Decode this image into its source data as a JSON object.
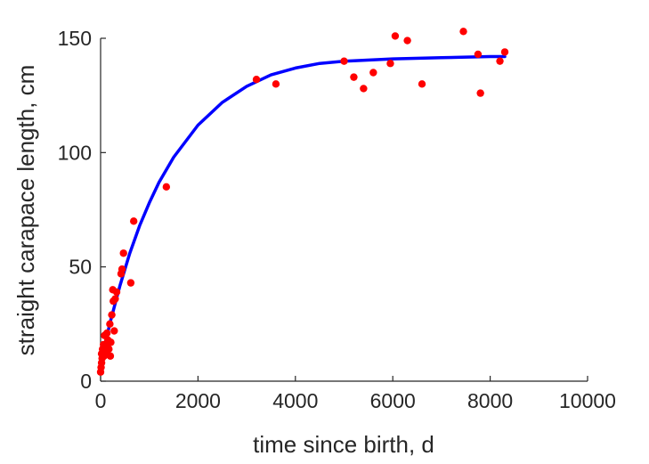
{
  "chart_data": {
    "type": "scatter",
    "title": "",
    "xlabel": "time since birth, d",
    "ylabel": "straight carapace length, cm",
    "xlim": [
      0,
      10000
    ],
    "ylim": [
      0,
      150
    ],
    "xticks": [
      0,
      2000,
      4000,
      6000,
      8000,
      10000
    ],
    "yticks": [
      0,
      50,
      100,
      150
    ],
    "grid": false,
    "legend": "none",
    "colors": {
      "points": "#ff0000",
      "fit": "#0000ff",
      "axis": "#262626"
    },
    "series": [
      {
        "kind": "points",
        "values": [
          [
            0,
            4
          ],
          [
            10,
            6
          ],
          [
            20,
            8
          ],
          [
            20,
            12
          ],
          [
            30,
            10
          ],
          [
            40,
            14
          ],
          [
            50,
            13
          ],
          [
            60,
            16
          ],
          [
            70,
            11
          ],
          [
            80,
            20
          ],
          [
            100,
            12
          ],
          [
            110,
            15
          ],
          [
            130,
            21
          ],
          [
            150,
            18
          ],
          [
            170,
            14
          ],
          [
            190,
            25
          ],
          [
            200,
            11
          ],
          [
            210,
            17
          ],
          [
            230,
            29
          ],
          [
            250,
            40
          ],
          [
            260,
            35
          ],
          [
            280,
            22
          ],
          [
            300,
            36
          ],
          [
            330,
            39
          ],
          [
            420,
            47
          ],
          [
            440,
            49
          ],
          [
            470,
            56
          ],
          [
            620,
            43
          ],
          [
            680,
            70
          ],
          [
            1350,
            85
          ],
          [
            3200,
            132
          ],
          [
            3600,
            130
          ],
          [
            5000,
            140
          ],
          [
            5200,
            133
          ],
          [
            5400,
            128
          ],
          [
            5600,
            135
          ],
          [
            5950,
            139
          ],
          [
            6050,
            151
          ],
          [
            6300,
            149
          ],
          [
            6600,
            130
          ],
          [
            7450,
            153
          ],
          [
            7750,
            143
          ],
          [
            7800,
            126
          ],
          [
            8200,
            140
          ],
          [
            8300,
            144
          ]
        ]
      },
      {
        "kind": "fit-curve",
        "values": [
          [
            0,
            8
          ],
          [
            200,
            26
          ],
          [
            400,
            42
          ],
          [
            600,
            56
          ],
          [
            800,
            68
          ],
          [
            1000,
            78
          ],
          [
            1200,
            87
          ],
          [
            1500,
            98
          ],
          [
            2000,
            112
          ],
          [
            2500,
            122
          ],
          [
            3000,
            129
          ],
          [
            3500,
            134
          ],
          [
            4000,
            137
          ],
          [
            4500,
            139
          ],
          [
            5000,
            140
          ],
          [
            6000,
            141
          ],
          [
            7000,
            141.5
          ],
          [
            8000,
            142
          ],
          [
            8300,
            142
          ]
        ]
      }
    ]
  }
}
